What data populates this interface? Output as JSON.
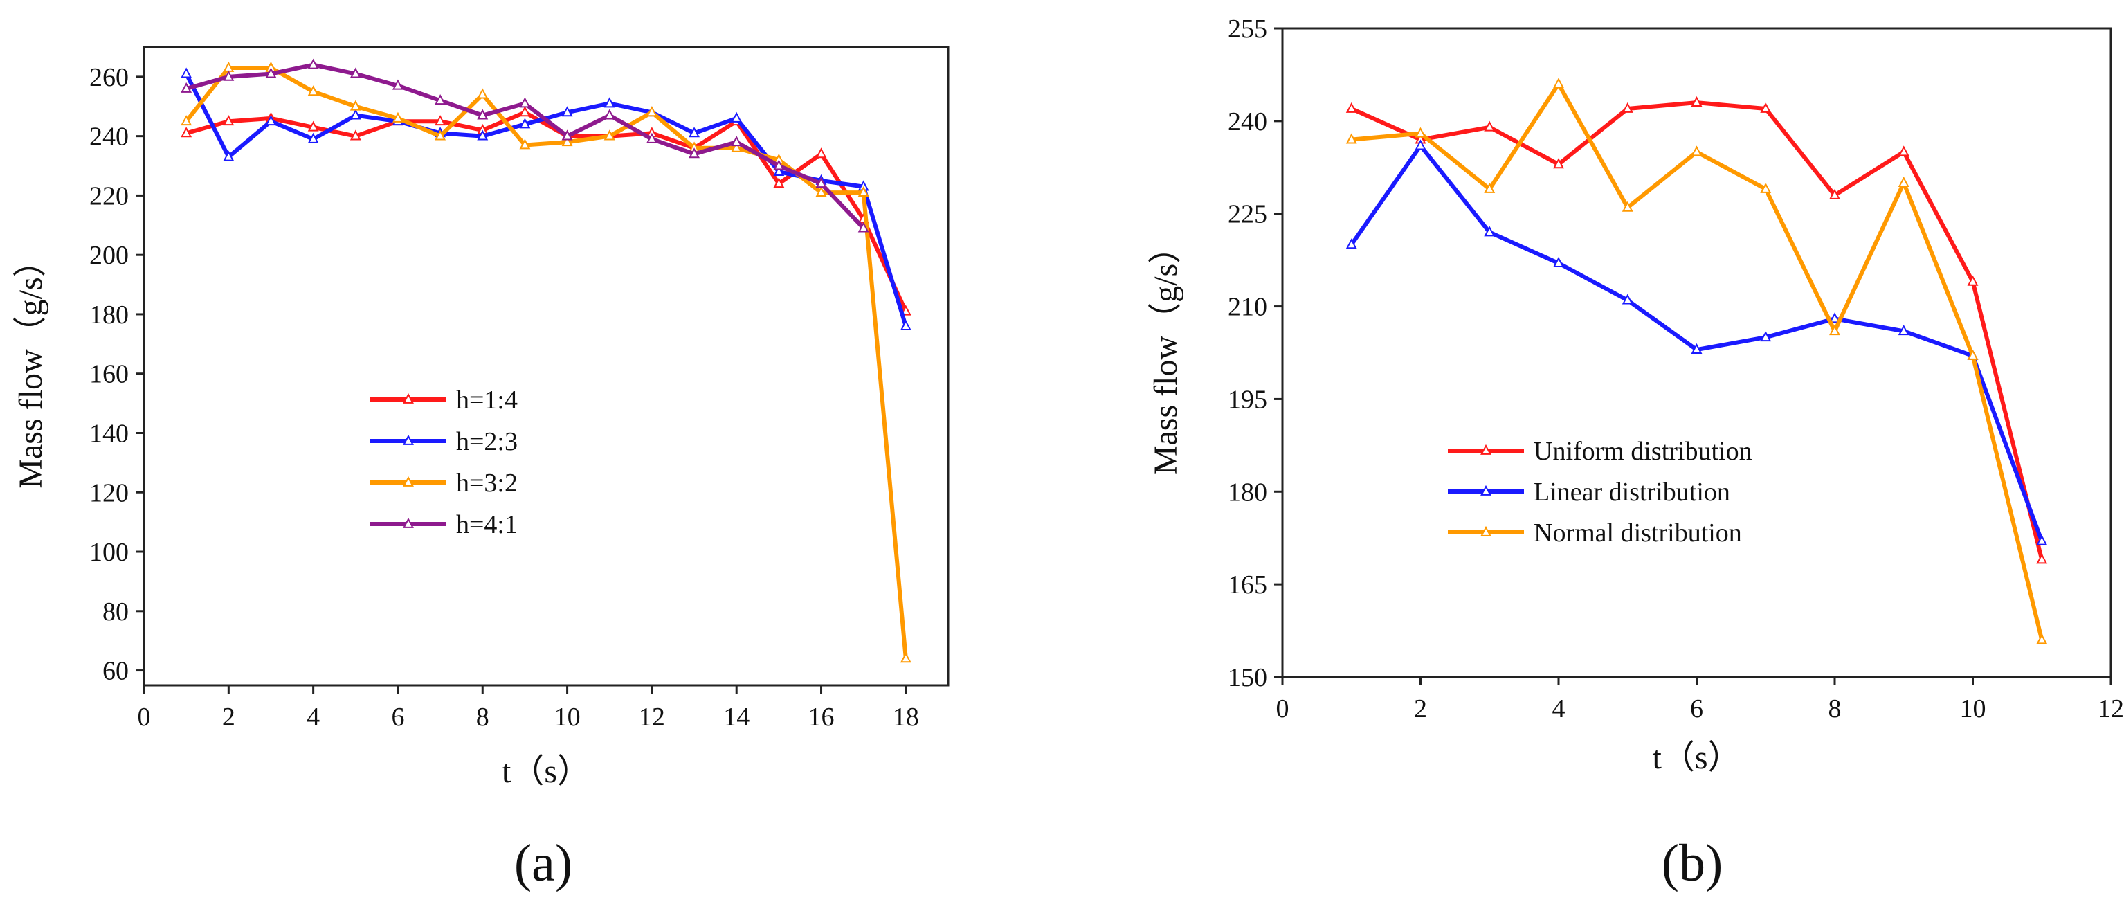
{
  "figure": {
    "panel_labels": [
      "(a)",
      "(b)"
    ]
  },
  "chart_data": [
    {
      "panel": "(a)",
      "type": "line",
      "title": "",
      "xlabel": "t（s）",
      "ylabel": "Mass flow（g/s）",
      "xlim": [
        0,
        19
      ],
      "ylim": [
        55,
        270
      ],
      "xticks": [
        0,
        2,
        4,
        6,
        8,
        10,
        12,
        14,
        16,
        18
      ],
      "yticks": [
        60,
        80,
        100,
        120,
        140,
        160,
        180,
        200,
        220,
        240,
        260
      ],
      "grid": false,
      "legend": "center-left",
      "x": [
        1,
        2,
        3,
        4,
        5,
        6,
        7,
        8,
        9,
        10,
        11,
        12,
        13,
        14,
        15,
        16,
        17,
        18
      ],
      "series": [
        {
          "name": "h=1:4",
          "color": "#ff1a1a",
          "values": [
            241,
            245,
            246,
            243,
            240,
            245,
            245,
            242,
            248,
            240,
            240,
            241,
            236,
            245,
            224,
            234,
            212,
            181
          ]
        },
        {
          "name": "h=2:3",
          "color": "#1a1aff",
          "values": [
            261,
            233,
            245,
            239,
            247,
            245,
            241,
            240,
            244,
            248,
            251,
            248,
            241,
            246,
            228,
            225,
            223,
            176
          ]
        },
        {
          "name": "h=3:2",
          "color": "#ff9900",
          "values": [
            245,
            263,
            263,
            255,
            250,
            246,
            240,
            254,
            237,
            238,
            240,
            248,
            236,
            236,
            232,
            221,
            221,
            64
          ]
        },
        {
          "name": "h=4:1",
          "color": "#8e1a8e",
          "values": [
            256,
            260,
            261,
            264,
            261,
            257,
            252,
            247,
            251,
            240,
            247,
            239,
            234,
            238,
            230,
            224,
            209,
            null
          ]
        }
      ]
    },
    {
      "panel": "(b)",
      "type": "line",
      "title": "",
      "xlabel": "t（s）",
      "ylabel": "Mass flow（g/s）",
      "xlim": [
        0,
        12
      ],
      "ylim": [
        150,
        255
      ],
      "xticks": [
        0,
        2,
        4,
        6,
        8,
        10,
        12
      ],
      "yticks": [
        150,
        165,
        180,
        195,
        210,
        225,
        240,
        255
      ],
      "grid": false,
      "legend": "center-left",
      "x": [
        1,
        2,
        3,
        4,
        5,
        6,
        7,
        8,
        9,
        10,
        11
      ],
      "series": [
        {
          "name": "Uniform distribution",
          "color": "#ff1a1a",
          "values": [
            242,
            237,
            239,
            233,
            242,
            243,
            242,
            228,
            235,
            214,
            169
          ]
        },
        {
          "name": "Linear distribution",
          "color": "#1a1aff",
          "values": [
            220,
            236,
            222,
            217,
            211,
            203,
            205,
            208,
            206,
            202,
            172
          ]
        },
        {
          "name": "Normal distribution",
          "color": "#ff9900",
          "values": [
            237,
            238,
            229,
            246,
            226,
            235,
            229,
            206,
            230,
            202,
            156
          ]
        }
      ]
    }
  ]
}
